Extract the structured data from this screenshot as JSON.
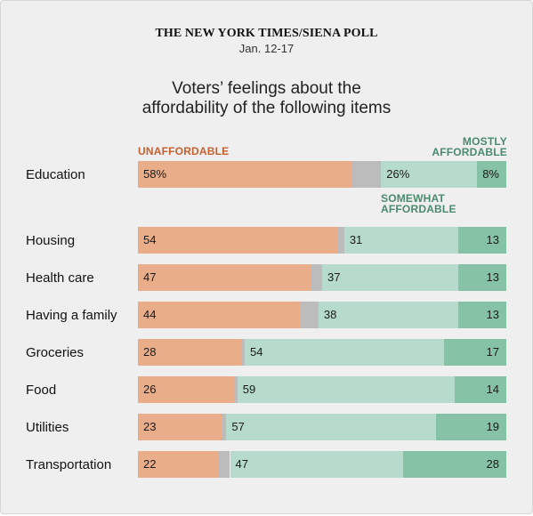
{
  "source": "THE NEW YORK TIMES/SIENA POLL",
  "date": "Jan. 12-17",
  "title_line1": "Voters’ feelings about the",
  "title_line2": "affordability of the following items",
  "labels": {
    "unaffordable": "UNAFFORDABLE",
    "mostly_line1": "MOSTLY",
    "mostly_line2": "AFFORDABLE",
    "somewhat_line1": "SOMEWHAT",
    "somewhat_line2": "AFFORDABLE"
  },
  "colors": {
    "unaffordable": "#e9ad8a",
    "gap": "#bcbcbc",
    "somewhat_affordable": "#b6dacb",
    "mostly_affordable": "#86c2a6"
  },
  "chart_data": {
    "type": "bar",
    "orientation": "horizontal",
    "stacked": true,
    "categories": [
      "Education",
      "Housing",
      "Health care",
      "Having a family",
      "Groceries",
      "Food",
      "Utilities",
      "Transportation"
    ],
    "series": [
      {
        "name": "UNAFFORDABLE",
        "values": [
          58,
          54,
          47,
          44,
          28,
          26,
          23,
          22
        ]
      },
      {
        "name": "SOMEWHAT AFFORDABLE",
        "values": [
          26,
          31,
          37,
          38,
          54,
          59,
          57,
          47
        ]
      },
      {
        "name": "MOSTLY AFFORDABLE",
        "values": [
          8,
          13,
          13,
          13,
          17,
          14,
          19,
          28
        ]
      }
    ],
    "display_values": [
      [
        "58%",
        "26%",
        "8%"
      ],
      [
        "54",
        "31",
        "13"
      ],
      [
        "47",
        "37",
        "13"
      ],
      [
        "44",
        "38",
        "13"
      ],
      [
        "28",
        "54",
        "17"
      ],
      [
        "26",
        "59",
        "14"
      ],
      [
        "23",
        "57",
        "19"
      ],
      [
        "22",
        "47",
        "28"
      ]
    ],
    "xlim": [
      0,
      100
    ]
  }
}
